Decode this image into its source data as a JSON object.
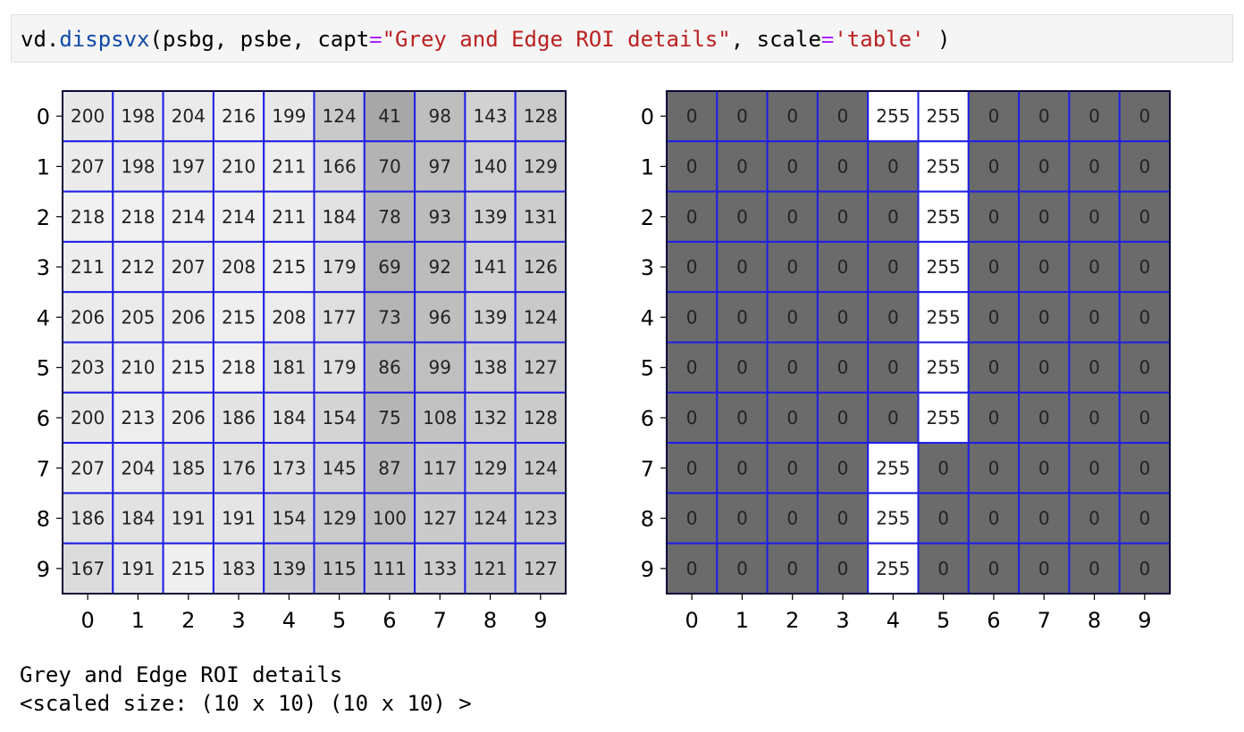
{
  "code_cell": {
    "obj": "vd",
    "dot": ".",
    "fn": "dispsvx",
    "args_open": "(psbg, psbe, capt",
    "eq1": "=",
    "capt_str": "\"Grey and Edge ROI details\"",
    "mid": ", scale",
    "eq2": "=",
    "scale_str": "'table'",
    "close": " )"
  },
  "output": {
    "caption": "Grey and Edge ROI details",
    "size_line": "<scaled size: (10 x 10) (10 x 10) >"
  },
  "chart_data": [
    {
      "type": "heatmap",
      "title": "",
      "x_ticks": [
        "0",
        "1",
        "2",
        "3",
        "4",
        "5",
        "6",
        "7",
        "8",
        "9"
      ],
      "y_ticks": [
        "0",
        "1",
        "2",
        "3",
        "4",
        "5",
        "6",
        "7",
        "8",
        "9"
      ],
      "grid_color": "#1f1fe6",
      "values": [
        [
          200,
          198,
          204,
          216,
          199,
          124,
          41,
          98,
          143,
          128
        ],
        [
          207,
          198,
          197,
          210,
          211,
          166,
          70,
          97,
          140,
          129
        ],
        [
          218,
          218,
          214,
          214,
          211,
          184,
          78,
          93,
          139,
          131
        ],
        [
          211,
          212,
          207,
          208,
          215,
          179,
          69,
          92,
          141,
          126
        ],
        [
          206,
          205,
          206,
          215,
          208,
          177,
          73,
          96,
          139,
          124
        ],
        [
          203,
          210,
          215,
          218,
          181,
          179,
          86,
          99,
          138,
          127
        ],
        [
          200,
          213,
          206,
          186,
          184,
          154,
          75,
          108,
          132,
          128
        ],
        [
          207,
          204,
          185,
          176,
          173,
          145,
          87,
          117,
          129,
          124
        ],
        [
          186,
          184,
          191,
          191,
          154,
          129,
          100,
          127,
          124,
          123
        ],
        [
          167,
          191,
          215,
          183,
          139,
          115,
          111,
          133,
          121,
          127
        ]
      ]
    },
    {
      "type": "heatmap",
      "title": "",
      "x_ticks": [
        "0",
        "1",
        "2",
        "3",
        "4",
        "5",
        "6",
        "7",
        "8",
        "9"
      ],
      "y_ticks": [
        "0",
        "1",
        "2",
        "3",
        "4",
        "5",
        "6",
        "7",
        "8",
        "9"
      ],
      "grid_color": "#1f1fe6",
      "zero_color": "#6b6b6b",
      "values": [
        [
          0,
          0,
          0,
          0,
          255,
          255,
          0,
          0,
          0,
          0
        ],
        [
          0,
          0,
          0,
          0,
          0,
          255,
          0,
          0,
          0,
          0
        ],
        [
          0,
          0,
          0,
          0,
          0,
          255,
          0,
          0,
          0,
          0
        ],
        [
          0,
          0,
          0,
          0,
          0,
          255,
          0,
          0,
          0,
          0
        ],
        [
          0,
          0,
          0,
          0,
          0,
          255,
          0,
          0,
          0,
          0
        ],
        [
          0,
          0,
          0,
          0,
          0,
          255,
          0,
          0,
          0,
          0
        ],
        [
          0,
          0,
          0,
          0,
          0,
          255,
          0,
          0,
          0,
          0
        ],
        [
          0,
          0,
          0,
          0,
          255,
          0,
          0,
          0,
          0,
          0
        ],
        [
          0,
          0,
          0,
          0,
          255,
          0,
          0,
          0,
          0,
          0
        ],
        [
          0,
          0,
          0,
          0,
          255,
          0,
          0,
          0,
          0,
          0
        ]
      ]
    }
  ]
}
